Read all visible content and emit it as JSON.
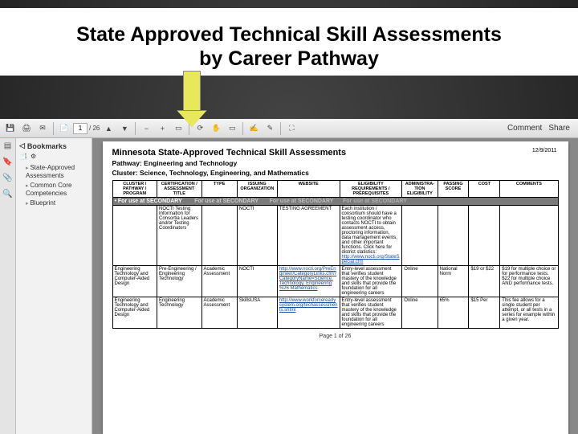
{
  "slide": {
    "title_line1": "State Approved Technical Skill Assessments",
    "title_line2": "by Career Pathway"
  },
  "arrow": {
    "fill": "#e8e85a",
    "border": "#888888"
  },
  "toolbar": {
    "page_current": "1",
    "page_total": "/ 26",
    "comment": "Comment",
    "share": "Share",
    "icons": [
      "save",
      "print",
      "mail",
      "page",
      "up",
      "down",
      "zoom-out",
      "zoom-in",
      "fit",
      "rotate",
      "hand",
      "select",
      "sign",
      "fill",
      "fullscreen"
    ]
  },
  "rail": {
    "icons": [
      "page-thumb",
      "bookmark",
      "attach",
      "search"
    ]
  },
  "bookmarks": {
    "heading": "Bookmarks",
    "items": [
      "State-Approved Assessments",
      "Common Core Competencies",
      "Blueprint"
    ]
  },
  "doc": {
    "title": "Minnesota State-Approved Technical Skill Assessments",
    "date": "12/9/2011",
    "pathway": "Pathway:  Engineering and Technology",
    "cluster": "Cluster:  Science, Technology, Engineering, and Mathematics",
    "footer": "Page 1 of 26",
    "columns": [
      "CLUSTER / PATHWAY / PROGRAM",
      "CERTIFICATION / ASSESSMENT TITLE",
      "TYPE",
      "ISSUING ORGANIZATION",
      "WEBSITE",
      "ELIGIBILITY REQUIREMENTS / PREREQUISITES",
      "ADMINISTRA-TION ELIGIBILITY",
      "PASSING SCORE",
      "COST",
      "COMMENTS"
    ],
    "col_widths": [
      "10%",
      "10%",
      "8%",
      "9%",
      "14%",
      "14%",
      "8%",
      "7%",
      "7%",
      "13%"
    ],
    "band_label": "• For use at SECONDARY",
    "rows": [
      {
        "cells": [
          "",
          "NOCTI Testing Information for Consortia Leaders and/or Testing Coordinators",
          "",
          "NOCTI",
          "TESTING AGREEMENT",
          "Each institution / consortium should have a testing coordinator who contacts NOCTI to obtain assessment access, proctoring information, data management events, and other important functions. Click here for district statistics:",
          "",
          "",
          "",
          ""
        ],
        "link_in_col5": "http://www.nocti.org/StateSpecial.cfm"
      },
      {
        "cells": [
          "Engineering Technology and Computer-Aided Design",
          "Pre-Engineering / Engineering Technology",
          "Academic Assessment",
          "NOCTI",
          "",
          "Entry-level assessment that verifies student mastery of the knowledge and skills that provide the foundation for all engineering careers",
          "Online",
          "National Norm",
          "$19 or $22",
          "$19 for multiple choice or for performance tests. $22 for multiple choice AND performance tests."
        ],
        "link_col4": "http://www.nocti.org/PreEngineer/CategoryLinks.cfm?CategoryName=Science, Technology, Engineering %26 Mathematics"
      },
      {
        "cells": [
          "Engineering Technology and Computer-Aided Design",
          "Engineering Technology",
          "Academic Assessment",
          "SkillsUSA",
          "",
          "Entry-level assessment that verifies student mastery of the knowledge and skills that provide the foundation for all engineering careers",
          "Online",
          "65%",
          "$15 Per",
          "This fee allows for a single student per attempt, or all tests in a series for example within a given year."
        ],
        "link_col4": "http://www.workforcereadysystem.org/techassessments.shtml"
      }
    ]
  },
  "colors": {
    "slide_bg_inner": "#444444",
    "slide_bg_outer": "#1a1a1a",
    "toolbar_top": "#f5f5f5",
    "toolbar_bottom": "#dcdcdc",
    "band_bg": "#7a7a7a",
    "link": "#1a4fa0"
  }
}
